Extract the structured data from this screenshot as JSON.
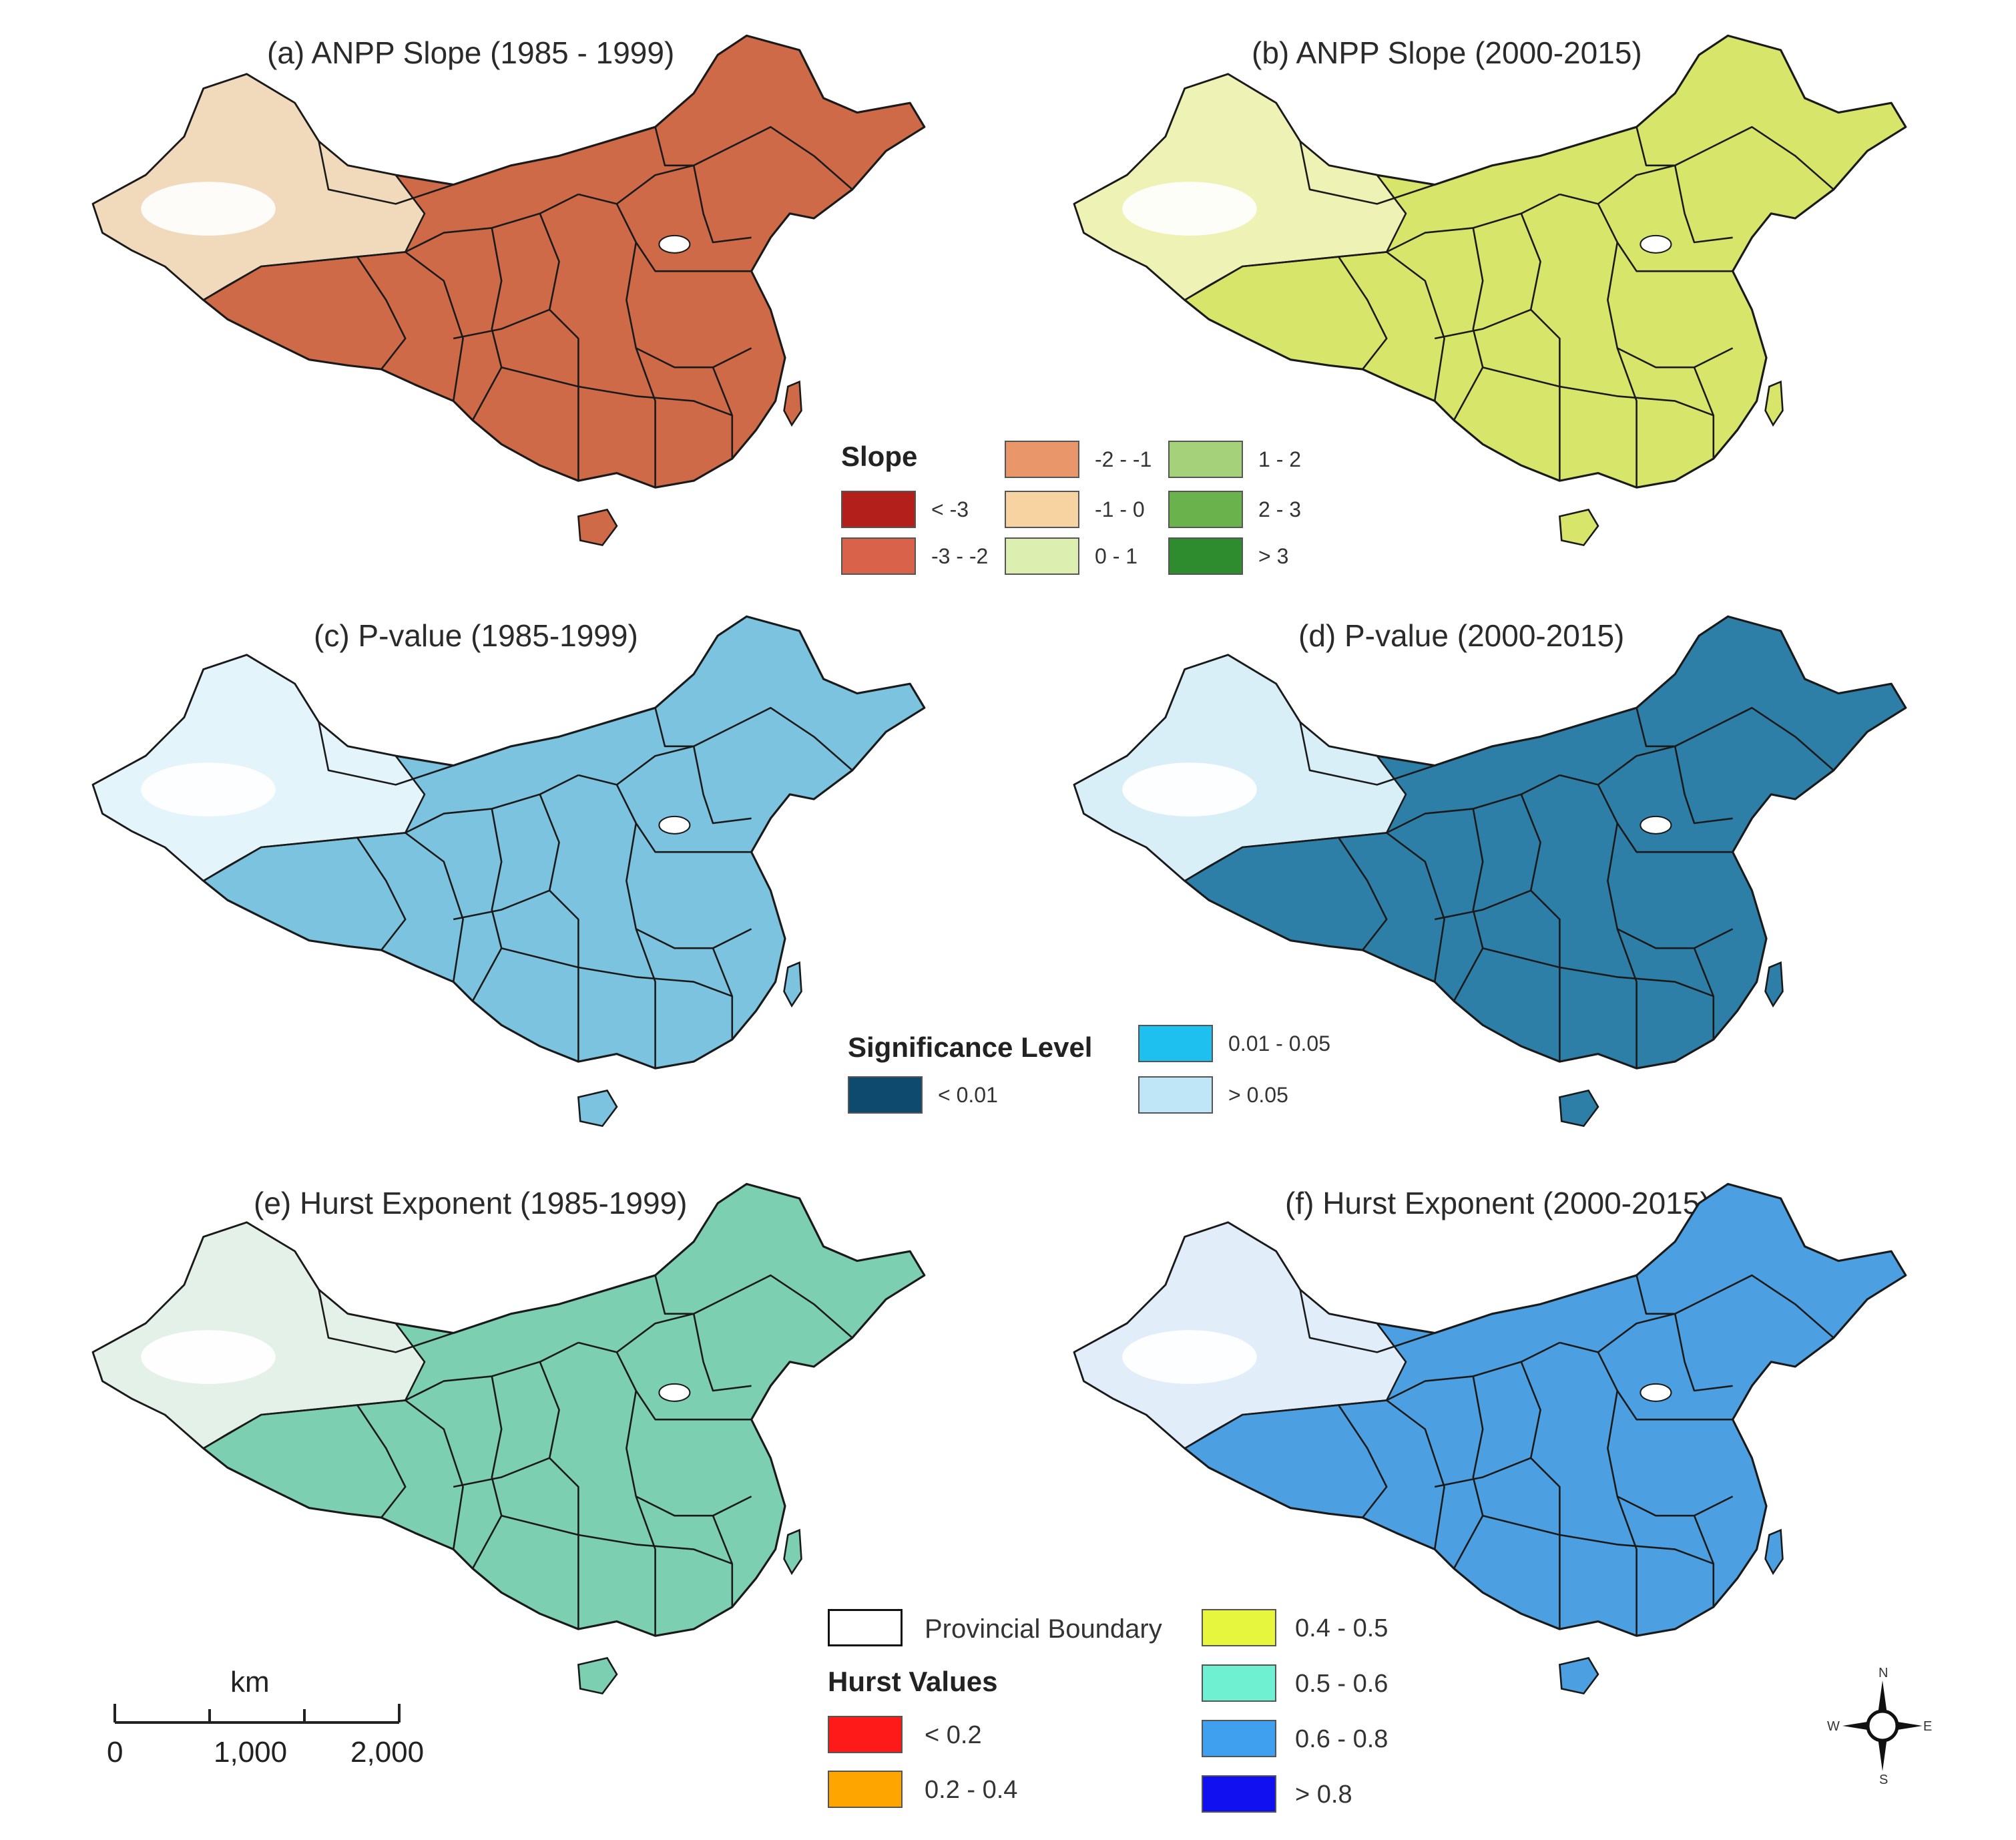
{
  "panels": {
    "a": {
      "title": "(a) ANPP Slope (1985 - 1999)"
    },
    "b": {
      "title": "(b) ANPP Slope (2000-2015)"
    },
    "c": {
      "title": "(c) P-value (1985-1999)"
    },
    "d": {
      "title": "(d) P-value (2000-2015)"
    },
    "e": {
      "title": "(e) Hurst Exponent (1985-1999)"
    },
    "f": {
      "title": "(f) Hurst Exponent (2000-2015)"
    }
  },
  "slope_legend": {
    "title": "Slope",
    "items": [
      {
        "label": "< -3",
        "color": "#b3201c"
      },
      {
        "label": "-3 - -2",
        "color": "#d9634a"
      },
      {
        "label": "-2 - -1",
        "color": "#e8966a"
      },
      {
        "label": "-1 - 0",
        "color": "#f6d3a0"
      },
      {
        "label": "0 - 1",
        "color": "#dcefb0"
      },
      {
        "label": "1 - 2",
        "color": "#a4d17a"
      },
      {
        "label": "2 - 3",
        "color": "#6ab24c"
      },
      {
        "label": "> 3",
        "color": "#2e8b2e"
      }
    ]
  },
  "significance_legend": {
    "title": "Significance Level",
    "items": [
      {
        "label": "< 0.01",
        "color": "#0d4a6e"
      },
      {
        "label": "0.01 - 0.05",
        "color": "#1ec0f0"
      },
      {
        "label": "> 0.05",
        "color": "#bfe6f7"
      }
    ]
  },
  "hurst_legend": {
    "boundary_label": "Provincial Boundary",
    "title": "Hurst Values",
    "items": [
      {
        "label": "< 0.2",
        "color": "#ff1a1a"
      },
      {
        "label": "0.2 - 0.4",
        "color": "#ffa500"
      },
      {
        "label": "0.4 - 0.5",
        "color": "#e6f53d"
      },
      {
        "label": "0.5 - 0.6",
        "color": "#6ff0d0"
      },
      {
        "label": "0.6 - 0.8",
        "color": "#3fa0f0"
      },
      {
        "label": "> 0.8",
        "color": "#1010f0"
      }
    ]
  },
  "scale_bar": {
    "unit": "km",
    "ticks": [
      "0",
      "1,000",
      "2,000"
    ]
  },
  "compass": {
    "n": "N",
    "s": "S",
    "e": "E",
    "w": "W"
  },
  "colors": {
    "slope_a_fill": "#cf6a48",
    "slope_a_west": "#f1d9bc",
    "slope_b_fill": "#d7e66a",
    "slope_b_west": "#eef2b4",
    "pvalue_c_fill": "#7cc3df",
    "pvalue_c_west": "#e4f4fb",
    "pvalue_d_fill": "#2d7fa8",
    "pvalue_d_west": "#d9eff8",
    "hurst_e_fill": "#7ccfb0",
    "hurst_e_west": "#e3f1e8",
    "hurst_f_fill": "#4c9fe0",
    "hurst_f_west": "#e1eefa",
    "boundary": "#1a1a1a",
    "desert": "#ffffff"
  }
}
